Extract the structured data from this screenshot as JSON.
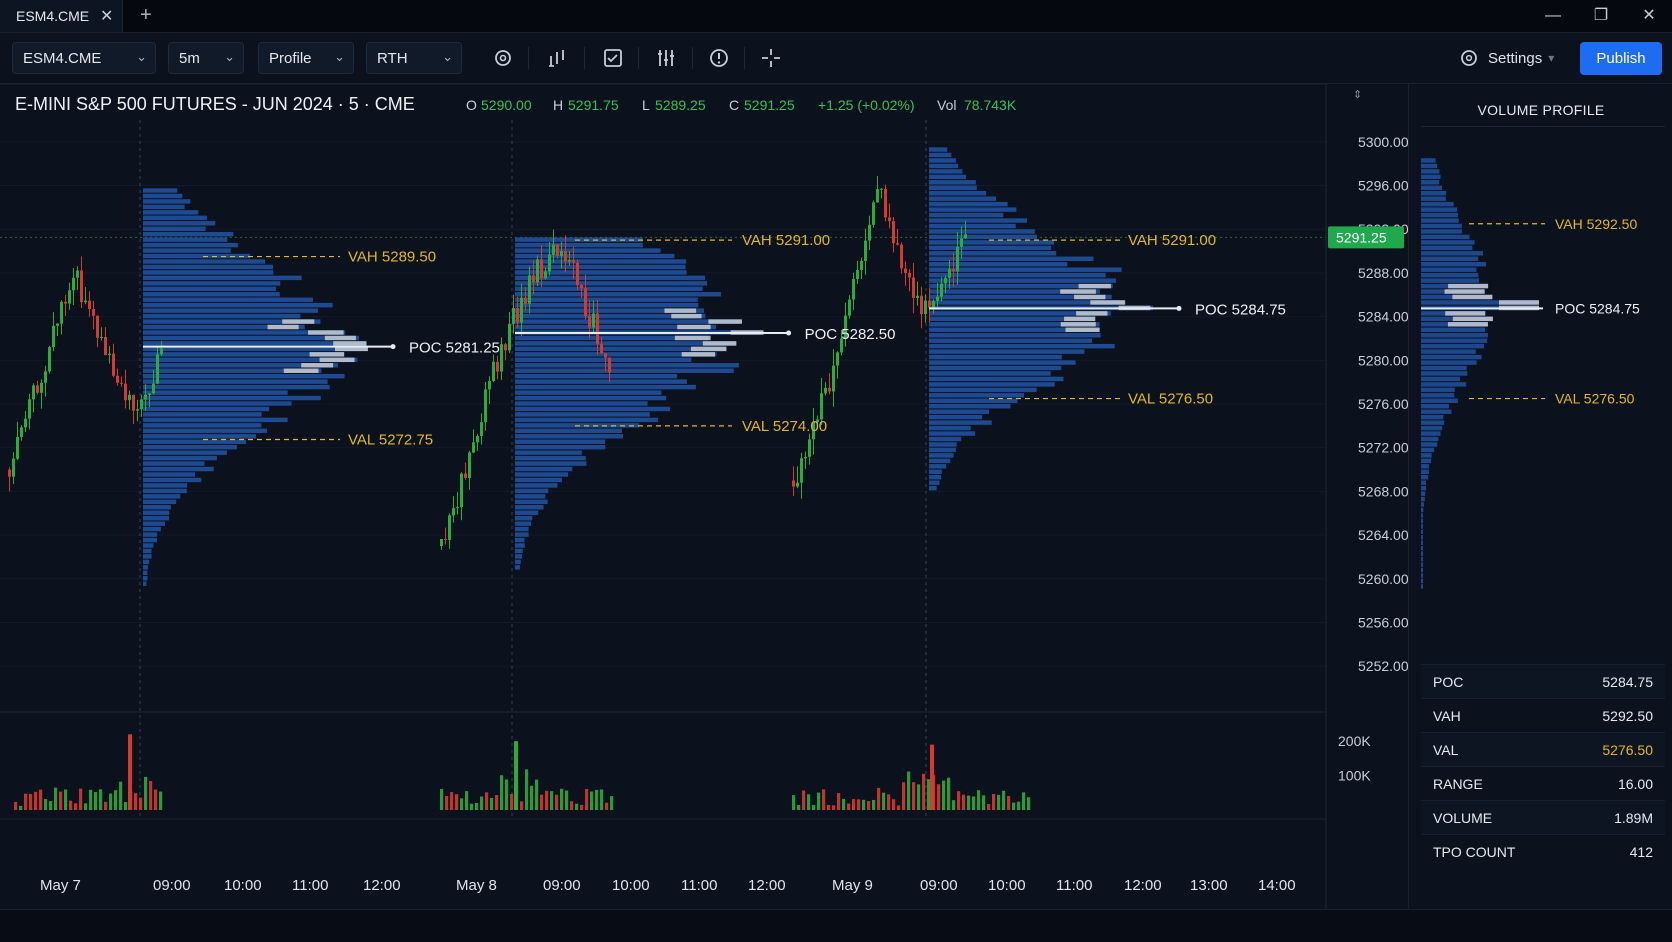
{
  "window": {
    "tab_label": "ESM4.CME",
    "tab_close_icon": "close-icon",
    "add_tab_icon": "plus-icon",
    "controls": [
      "minimize-icon",
      "maximize-icon",
      "close-icon"
    ]
  },
  "toolbar": {
    "symbol": "ESM4.CME",
    "interval": "5m",
    "chart_type": "Profile",
    "session": "RTH",
    "tools": [
      "gear-icon",
      "indicator-icon",
      "calendar-check-icon",
      "bars-icon",
      "alert-icon",
      "crosshair-icon"
    ],
    "settings_label": "Settings",
    "publish_label": "Publish"
  },
  "header": {
    "title": "E-MINI S&P 500 FUTURES - JUN 2024 · 5 · CME",
    "o_label": "O",
    "o_value": "5290.00",
    "h_label": "H",
    "h_value": "5291.75",
    "l_label": "L",
    "l_value": "5289.25",
    "c_label": "C",
    "c_value": "5291.25",
    "change": "+1.25 (+0.02%)",
    "vol_label": "Vol",
    "vol_value": "78.743K"
  },
  "colors": {
    "background": "#0b111d",
    "profile_blue": "#1f4f9a",
    "up": "#2faa3c",
    "down": "#d53a2e",
    "va_line": "#e0b820",
    "poc_line": "#e8ecf2",
    "last_price": "#20a84c",
    "accent": "#1e6cf2"
  },
  "chart_data": {
    "type": "volume-profile-candlestick",
    "price_axis": {
      "range": [
        5250,
        5302
      ],
      "ticks": [
        "5300.00",
        "5296.00",
        "5292.00",
        "5288.00",
        "5284.00",
        "5280.00",
        "5276.00",
        "5272.00",
        "5268.00",
        "5264.00",
        "5260.00",
        "5256.00",
        "5252.00"
      ],
      "last_price": 5291.25,
      "last_price_label": "5291.25"
    },
    "volume_axis": {
      "range": [
        0,
        250000
      ],
      "ticks": [
        {
          "v": 200000,
          "label": "200K"
        },
        {
          "v": 100000,
          "label": "100K"
        }
      ]
    },
    "time_axis": {
      "labels": [
        "May 7",
        "09:00",
        "10:00",
        "11:00",
        "12:00",
        "May 8",
        "09:00",
        "10:00",
        "11:00",
        "12:00",
        "May 9",
        "09:00",
        "10:00",
        "11:00",
        "12:00",
        "13:00",
        "14:00"
      ]
    },
    "sessions": [
      {
        "date": "May 7",
        "poc": 5281.25,
        "vah": 5289.5,
        "val": 5272.75,
        "high": 5295.5,
        "low": 5259.5,
        "poc_label": "POC  5281.25",
        "vah_label": "VAH 5289.50",
        "val_label": "VAL  5272.75"
      },
      {
        "date": "May 8",
        "poc": 5282.5,
        "vah": 5291.0,
        "val": 5274.0,
        "high": 5291.25,
        "low": 5261.0,
        "poc_label": "POC  5282.50",
        "vah_label": "VAH 5291.00",
        "val_label": "VAL  5274.00"
      },
      {
        "date": "May 9",
        "poc": 5284.75,
        "vah": 5291.0,
        "val": 5276.5,
        "high": 5299.25,
        "low": 5268.25,
        "poc_label": "POC  5284.75",
        "vah_label": "VAH 5291.00",
        "val_label": "VAL  5276.50"
      }
    ]
  },
  "volume_profile_panel": {
    "title": "VOLUME PROFILE",
    "poc": 5284.75,
    "vah": 5292.5,
    "val": 5276.5,
    "poc_label": "POC  5284.75",
    "vah_label": "VAH  5292.50",
    "val_label": "VAL  5276.50",
    "stats": [
      {
        "label": "POC",
        "value": "5284.75"
      },
      {
        "label": "VAH",
        "value": "5292.50"
      },
      {
        "label": "VAL",
        "value": "5276.50"
      },
      {
        "label": "RANGE",
        "value": "16.00"
      },
      {
        "label": "VOLUME",
        "value": "1.89M"
      },
      {
        "label": "TPO COUNT",
        "value": "412"
      }
    ]
  }
}
